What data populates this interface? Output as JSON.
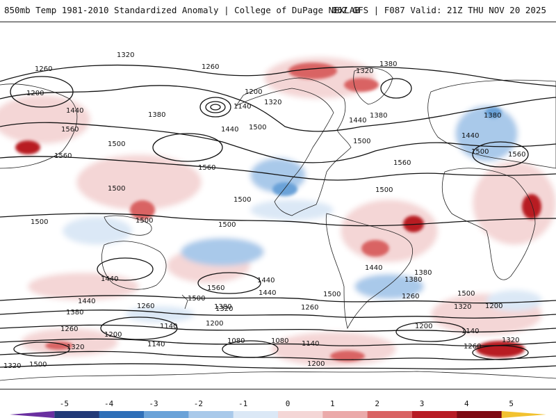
{
  "header": {
    "title": "850mb Temp 1981-2010 Standardized Anomaly | College of DuPage NEXLAB",
    "run_info": "06Z GFS | F087 Valid: 21Z THU NOV 20 2025"
  },
  "colorbar": {
    "ticks": [
      "-5",
      "-4",
      "-3",
      "-2",
      "-1",
      "0",
      "1",
      "2",
      "3",
      "4",
      "5"
    ],
    "colors": [
      "#6a2fa0",
      "#223a78",
      "#2f6fb8",
      "#6aa2d8",
      "#a9c9ea",
      "#dbe8f6",
      "#f4d6d6",
      "#ebaaaa",
      "#d96464",
      "#b81c24",
      "#7d0a12",
      "#f2c230"
    ]
  },
  "contours": {
    "labels": [
      "1320",
      "1260",
      "1380",
      "1200",
      "1140",
      "1440",
      "1500",
      "1560",
      "1080"
    ]
  },
  "map_labels": [
    {
      "text": "1320"
    },
    {
      "text": "1260"
    },
    {
      "text": "1200"
    },
    {
      "text": "1440"
    },
    {
      "text": "1560"
    },
    {
      "text": "1380"
    },
    {
      "text": "1560"
    },
    {
      "text": "1500"
    },
    {
      "text": "1260"
    },
    {
      "text": "1140"
    },
    {
      "text": "1200"
    },
    {
      "text": "1320"
    },
    {
      "text": "1440"
    },
    {
      "text": "1500"
    },
    {
      "text": "1380"
    },
    {
      "text": "1320"
    },
    {
      "text": "1380"
    },
    {
      "text": "1440"
    },
    {
      "text": "1500"
    },
    {
      "text": "1380"
    },
    {
      "text": "1440"
    },
    {
      "text": "1500"
    },
    {
      "text": "1560"
    },
    {
      "text": "1560"
    },
    {
      "text": "1500"
    },
    {
      "text": "1500"
    },
    {
      "text": "1500"
    },
    {
      "text": "1500"
    },
    {
      "text": "1500"
    },
    {
      "text": "1560"
    },
    {
      "text": "1500"
    },
    {
      "text": "1440"
    },
    {
      "text": "1380"
    },
    {
      "text": "1320"
    },
    {
      "text": "1260"
    },
    {
      "text": "1200"
    },
    {
      "text": "1140"
    },
    {
      "text": "1080"
    },
    {
      "text": "1140"
    },
    {
      "text": "1080"
    },
    {
      "text": "1260"
    },
    {
      "text": "1200"
    },
    {
      "text": "1440"
    },
    {
      "text": "1440"
    },
    {
      "text": "1380"
    },
    {
      "text": "1260"
    },
    {
      "text": "1320"
    },
    {
      "text": "1200"
    },
    {
      "text": "1200"
    },
    {
      "text": "1140"
    },
    {
      "text": "1260"
    },
    {
      "text": "1320"
    },
    {
      "text": "1380"
    },
    {
      "text": "1440"
    },
    {
      "text": "1500"
    },
    {
      "text": "1500"
    },
    {
      "text": "1500"
    },
    {
      "text": "1560"
    },
    {
      "text": "1440"
    },
    {
      "text": "1380"
    },
    {
      "text": "1260"
    },
    {
      "text": "1320"
    },
    {
      "text": "1200"
    },
    {
      "text": "1500"
    },
    {
      "text": "1140"
    },
    {
      "text": "1320"
    }
  ]
}
